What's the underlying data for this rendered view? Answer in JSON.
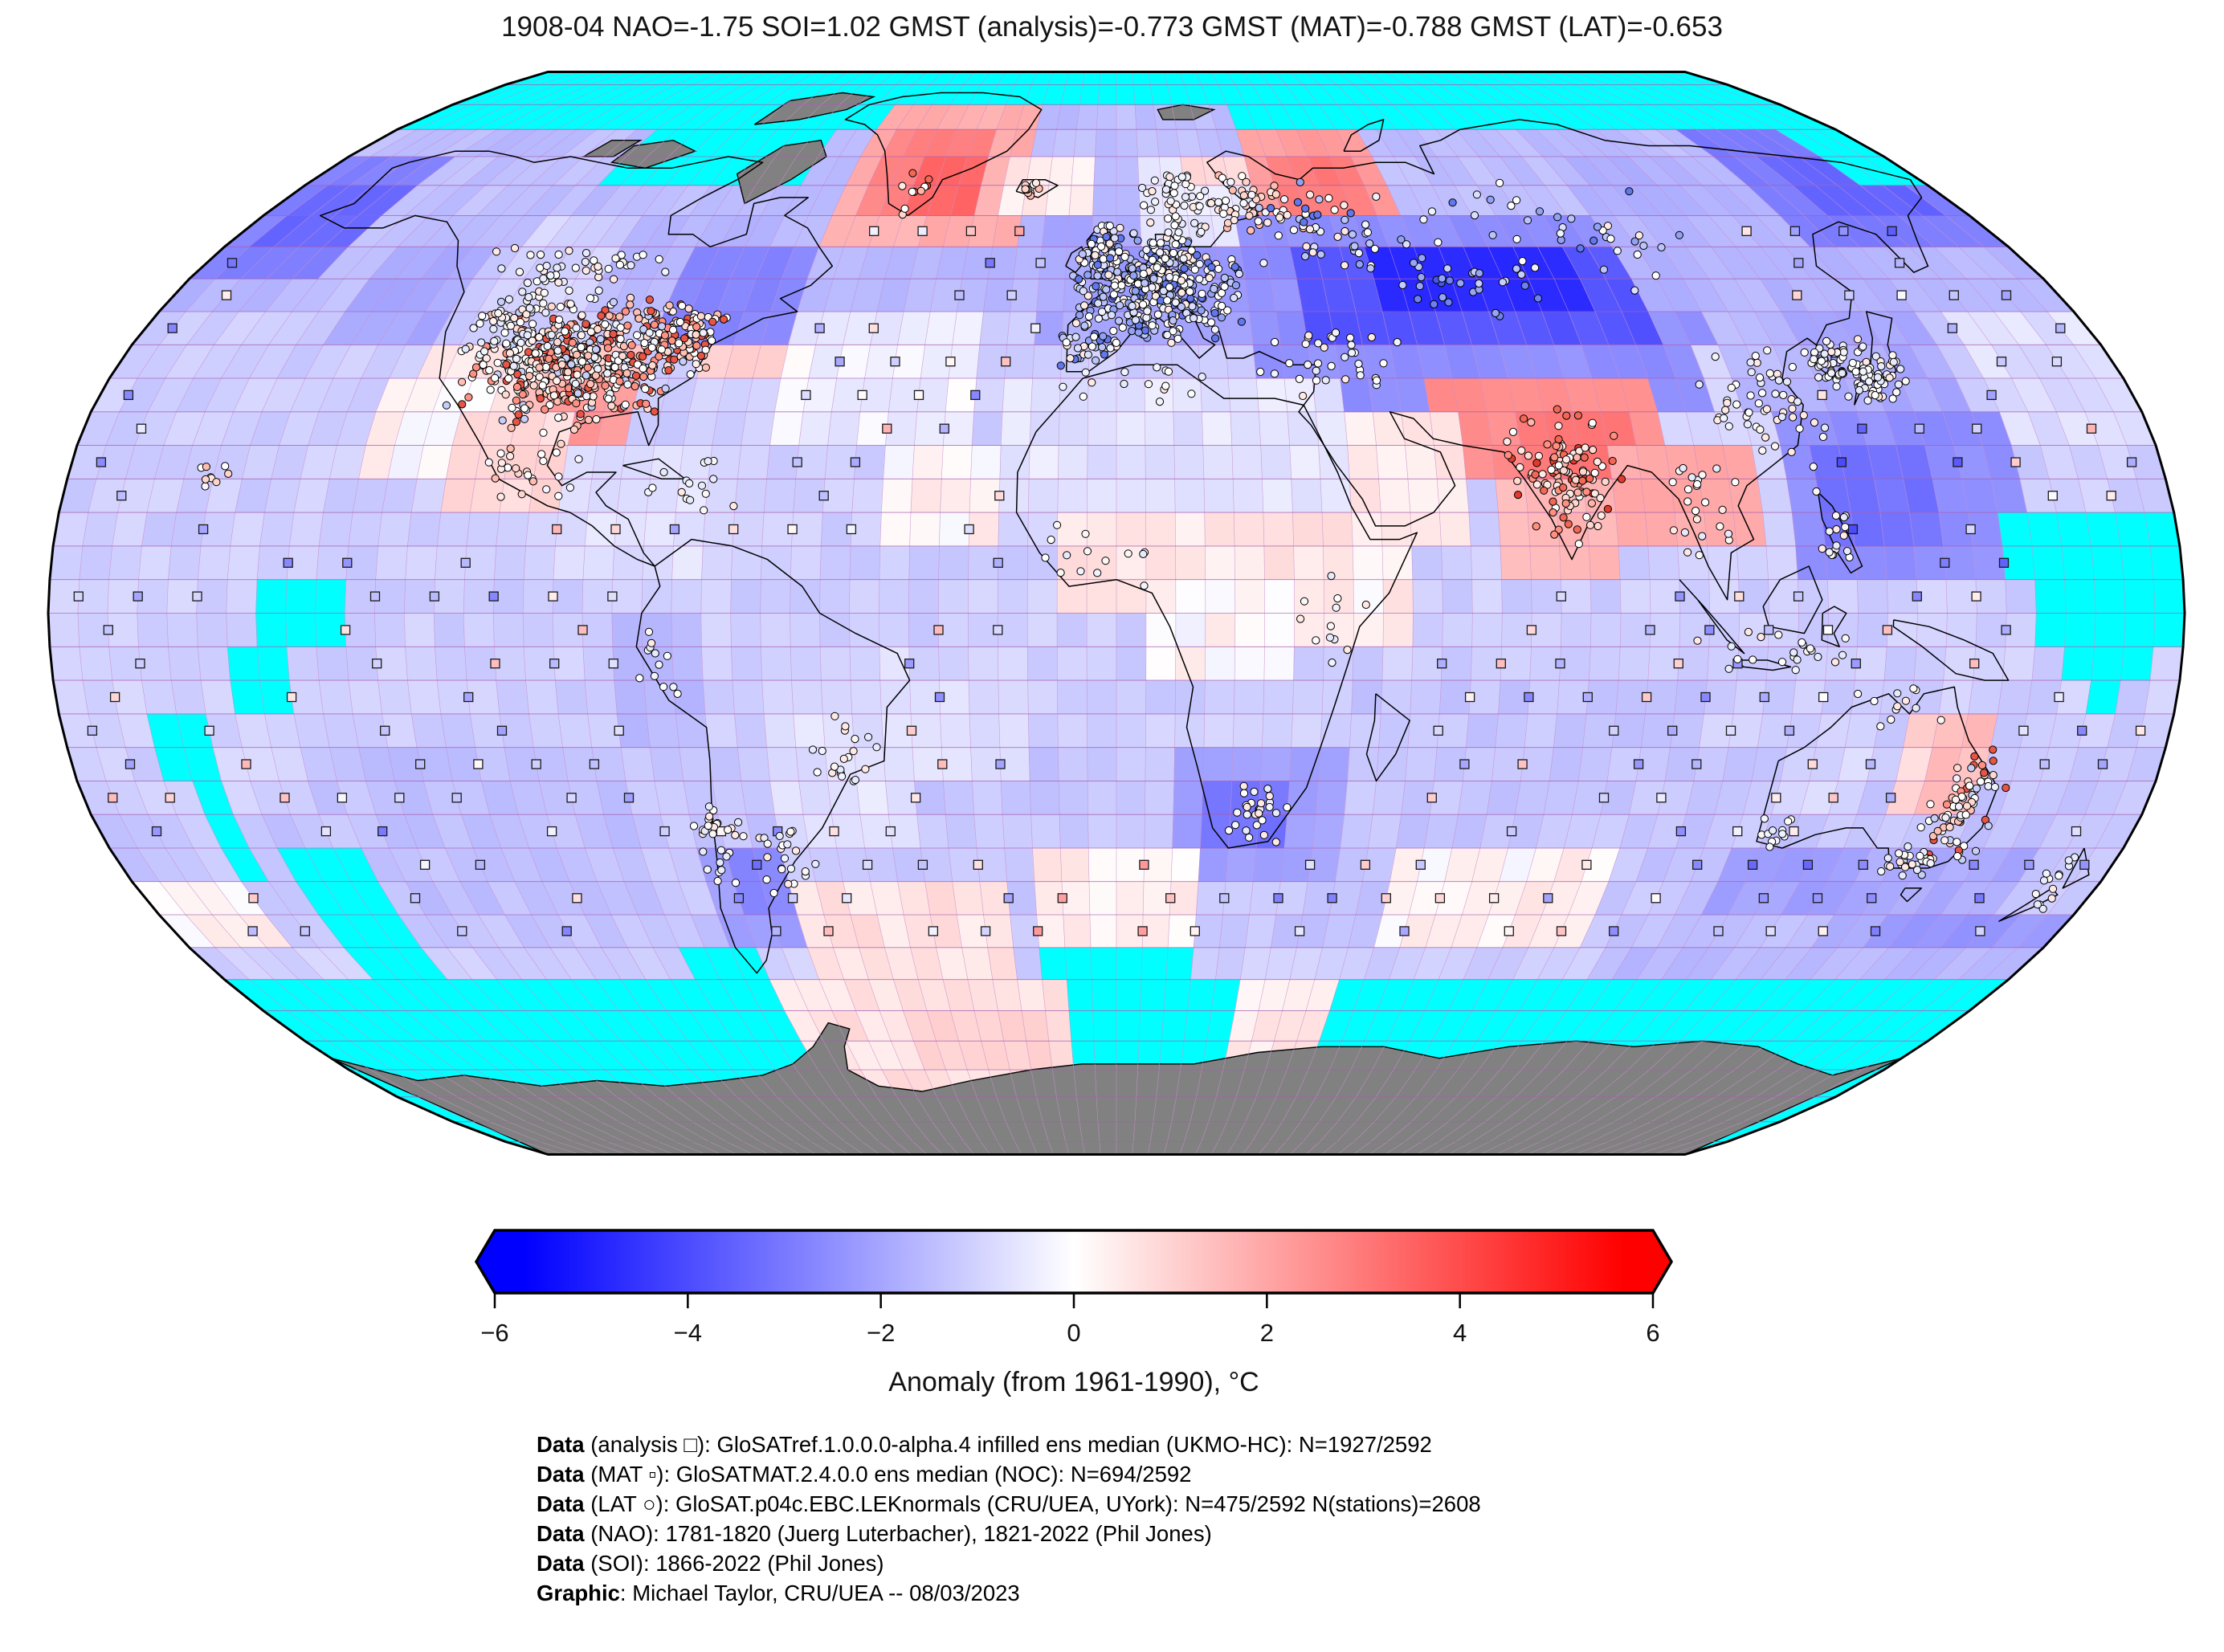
{
  "title": "1908-04 NAO=-1.75 SOI=1.02 GMST (analysis)=-0.773 GMST (MAT)=-0.788 GMST (LAT)=-0.653",
  "colorbar": {
    "label": "Anomaly (from 1961-1990), °C",
    "ticks": [
      -6,
      -4,
      -2,
      0,
      2,
      4,
      6
    ],
    "tick_labels": [
      "−6",
      "−4",
      "−2",
      "0",
      "2",
      "4",
      "6"
    ],
    "range": [
      -6,
      6
    ],
    "left_color": "#0000ff",
    "mid_color": "#ffffff",
    "right_color": "#ff0000"
  },
  "footer": {
    "lines": [
      {
        "bold": "Data",
        "rest": " (analysis □): GloSATref.1.0.0.0-alpha.4 infilled ens median (UKMO-HC): N=1927/2592"
      },
      {
        "bold": "Data",
        "rest": " (MAT ▫): GloSATMAT.2.4.0.0 ens median (NOC): N=694/2592"
      },
      {
        "bold": "Data",
        "rest": " (LAT ○): GloSAT.p04c.EBC.LEKnormals (CRU/UEA, UYork): N=475/2592 N(stations)=2608"
      },
      {
        "bold": "Data",
        "rest": " (NAO): 1781-1820 (Juerg Luterbacher), 1821-2022 (Phil Jones)"
      },
      {
        "bold": "Data",
        "rest": " (SOI): 1866-2022 (Phil Jones)"
      },
      {
        "bold": "Graphic",
        "rest": ": Michael Taylor, CRU/UEA -- 08/03/2023"
      }
    ]
  },
  "chart_data": {
    "type": "heatmap",
    "projection": "robinson",
    "title": "1908-04 NAO=-1.75 SOI=1.02 GMST (analysis)=-0.773 GMST (MAT)=-0.788 GMST (LAT)=-0.653",
    "period": "1908-04",
    "indices": {
      "NAO": -1.75,
      "SOI": 1.02,
      "GMST_analysis": -0.773,
      "GMST_MAT": -0.788,
      "GMST_LAT": -0.653
    },
    "grid": {
      "cell_deg": 5,
      "n_total": 2592,
      "n_analysis": 1927,
      "n_mat": 694,
      "n_lat": 475,
      "n_stations": 2608
    },
    "colorbar_label": "Anomaly (from 1961-1990), °C",
    "colors": {
      "missing": "#00ffff",
      "no_data_land": "#818181",
      "graticule_meridian": "#c891cc",
      "graticule_parallel": "#a75fae",
      "coast": "#000000",
      "outline": "#000000"
    },
    "anomaly_base": -0.6,
    "anomaly_patches": [
      [
        -180,
        180,
        60,
        80,
        -0.9
      ],
      [
        -180,
        180,
        45,
        60,
        -1.05
      ],
      [
        -180,
        180,
        -50,
        -20,
        -0.75
      ],
      [
        -180,
        -155,
        50,
        70,
        -2.2
      ],
      [
        -172.5,
        -150,
        55,
        67.5,
        -2.9
      ],
      [
        -155,
        -120,
        47.5,
        72.5,
        -0.85
      ],
      [
        -142.5,
        -122.5,
        40,
        55,
        -1.35
      ],
      [
        -120,
        -95,
        35,
        62.5,
        -0.55
      ],
      [
        -100,
        -80,
        45,
        60,
        -1.0
      ],
      [
        -85,
        -57.5,
        42.5,
        57.5,
        -2.1
      ],
      [
        -125,
        -105,
        30,
        42.5,
        0.15
      ],
      [
        -105,
        -82.5,
        30,
        42.5,
        0.85
      ],
      [
        -97.5,
        -82.5,
        27.5,
        37.5,
        1.7
      ],
      [
        -115,
        -95,
        17.5,
        30,
        0.45
      ],
      [
        -95,
        -62.5,
        7.5,
        25,
        -0.35
      ],
      [
        -72.5,
        -60,
        35,
        42.5,
        0.5
      ],
      [
        -60,
        -25,
        27.5,
        45,
        -0.15
      ],
      [
        -37.5,
        -17.5,
        10,
        27.5,
        0.1
      ],
      [
        -55,
        -30,
        45,
        60,
        -1.0
      ],
      [
        -60,
        -17.5,
        57.5,
        80,
        1.2
      ],
      [
        -52.5,
        -27.5,
        60,
        77.5,
        2.2
      ],
      [
        -45,
        -30,
        62.5,
        72.5,
        2.9
      ],
      [
        -25,
        -5,
        60,
        70,
        0.2
      ],
      [
        -15,
        32.5,
        42.5,
        62.5,
        -1.3
      ],
      [
        -5,
        25,
        45,
        57.5,
        -1.6
      ],
      [
        5,
        35,
        57.5,
        72.5,
        -0.2
      ],
      [
        15,
        32.5,
        65,
        72.5,
        0.5
      ],
      [
        30,
        62.5,
        55,
        75,
        1.6
      ],
      [
        35,
        57.5,
        60,
        70,
        2.4
      ],
      [
        45,
        80,
        52.5,
        62.5,
        0.6
      ],
      [
        25,
        115,
        30,
        62.5,
        -1.9
      ],
      [
        37.5,
        100,
        42.5,
        57.5,
        -3.4
      ],
      [
        50,
        92.5,
        45,
        55,
        -4.7
      ],
      [
        100,
        145,
        47.5,
        70,
        -1.1
      ],
      [
        140,
        180,
        57.5,
        75,
        -2.4
      ],
      [
        152.5,
        177.5,
        60,
        70,
        -3.0
      ],
      [
        105,
        122.5,
        22.5,
        42.5,
        -0.4
      ],
      [
        112.5,
        135,
        30,
        45,
        -1.0
      ],
      [
        117.5,
        155,
        7.5,
        32.5,
        -1.9
      ],
      [
        120,
        140,
        10,
        25,
        -2.6
      ],
      [
        125,
        152.5,
        32.5,
        45,
        -1.3
      ],
      [
        155,
        180,
        25,
        45,
        -0.35
      ],
      [
        57.5,
        95,
        22.5,
        35,
        1.9
      ],
      [
        70,
        92.5,
        22.5,
        32.5,
        2.5
      ],
      [
        87.5,
        110,
        12.5,
        27.5,
        1.3
      ],
      [
        67.5,
        85,
        5,
        22.5,
        1.0
      ],
      [
        35,
        60,
        12.5,
        32.5,
        0.25
      ],
      [
        -20,
        40,
        15,
        37.5,
        -0.3
      ],
      [
        -10,
        35,
        0,
        15,
        0.25
      ],
      [
        7.5,
        32.5,
        -10,
        7.5,
        0.05
      ],
      [
        32.5,
        52.5,
        -5,
        12.5,
        0.15
      ],
      [
        10,
        40,
        -37.5,
        -17.5,
        -1.5
      ],
      [
        15,
        30,
        -35,
        -25,
        -2.6
      ],
      [
        40,
        100,
        -45,
        -10,
        -0.75
      ],
      [
        50,
        90,
        -50,
        -32.5,
        0.1
      ],
      [
        115,
        132.5,
        -30,
        -17.5,
        -0.5
      ],
      [
        137.5,
        150,
        -30,
        -12.5,
        0.5
      ],
      [
        142.5,
        150,
        -27.5,
        -15,
        0.9
      ],
      [
        110,
        140,
        -45,
        -32.5,
        -1.5
      ],
      [
        135,
        165,
        -47.5,
        -35,
        -1.3
      ],
      [
        145,
        180,
        -55,
        -42.5,
        -1.7
      ],
      [
        -180,
        -140,
        -30,
        10,
        -0.55
      ],
      [
        -130,
        -85,
        -45,
        -20,
        -0.85
      ],
      [
        -85,
        -70,
        -17.5,
        0,
        -1.0
      ],
      [
        -75,
        -57.5,
        -50,
        -32.5,
        -1.5
      ],
      [
        -70,
        -60,
        -45,
        -35,
        -2.0
      ],
      [
        -57.5,
        -35,
        -35,
        -15,
        -0.3
      ],
      [
        -40,
        -15,
        -25,
        -5,
        -0.4
      ],
      [
        -60,
        -20,
        -57.5,
        -40,
        0.3
      ],
      [
        -15,
        15,
        -50,
        -32.5,
        0.15
      ],
      [
        -180,
        -160,
        -50,
        -40,
        0.1
      ],
      [
        95,
        180,
        -55,
        -47.5,
        -1.0
      ],
      [
        -67.5,
        -7.5,
        -75,
        -52.5,
        0.3
      ],
      [
        -45,
        -15,
        -70,
        -57.5,
        0.5
      ],
      [
        25,
        45,
        -70,
        -55,
        0.2
      ],
      [
        -130,
        -115,
        22.5,
        37.5,
        0.05
      ]
    ],
    "missing_rects": [
      [
        -180,
        180,
        82.5,
        90
      ],
      [
        -180,
        -57.5,
        77.5,
        82.5
      ],
      [
        30,
        180,
        77.5,
        82.5
      ],
      [
        -112.5,
        -70,
        67.5,
        77.5
      ],
      [
        165,
        180,
        67.5,
        77.5
      ],
      [
        152.5,
        180,
        5,
        17.5
      ],
      [
        157.5,
        180,
        -2.5,
        5
      ],
      [
        162.5,
        177.5,
        -7.5,
        -2.5
      ],
      [
        167.5,
        172.5,
        -12.5,
        -7.5
      ],
      [
        -145,
        -130,
        -5,
        7.5
      ],
      [
        -150,
        -140,
        -12.5,
        -2.5
      ],
      [
        -162.5,
        -155,
        -22.5,
        -12.5
      ],
      [
        -160,
        -152.5,
        -37.5,
        -22.5
      ],
      [
        -150,
        -135,
        -52.5,
        -35
      ],
      [
        -85,
        -70,
        -55,
        -50
      ],
      [
        -180,
        180,
        -90,
        -55
      ],
      [
        -12.5,
        17.5,
        -55,
        -50
      ]
    ],
    "missing_holes": [
      [
        -67.5,
        -7.5,
        -75,
        -52.5
      ],
      [
        25,
        45,
        -70,
        -55
      ]
    ],
    "stations": {
      "square_markers": {
        "lat_min": -47.5,
        "lat_max": 57.5,
        "lat_step": 5,
        "lon_step": 10,
        "keep": 0.62,
        "size": 11
      },
      "no_square_zones": [
        [
          -168,
          -55,
          17.5,
          72
        ],
        [
          -82,
          -35,
          -30,
          12
        ],
        [
          -18,
          52,
          -35,
          36
        ],
        [
          -11,
          130,
          37.5,
          77.5
        ],
        [
          50,
          125,
          5,
          37.5
        ],
        [
          140,
          155,
          -40,
          -12
        ],
        [
          -55,
          -20,
          59,
          83
        ]
      ],
      "circle_clusters": [
        [
          -98,
          38,
          13,
          6,
          520,
          "uspink"
        ],
        [
          -80,
          41,
          5,
          3.5,
          110,
          "uspink"
        ],
        [
          -112,
          44,
          6,
          5,
          60,
          "whites"
        ],
        [
          -105,
          52,
          14,
          3,
          40,
          "whites"
        ],
        [
          -100,
          22,
          6,
          4,
          30,
          "pinksoft"
        ],
        [
          -72,
          19,
          8,
          3,
          16,
          "whites"
        ],
        [
          -71,
          -33,
          2.5,
          6,
          26,
          "whites"
        ],
        [
          -61,
          -36,
          5,
          4,
          26,
          "whites"
        ],
        [
          -45,
          -21,
          6,
          4,
          20,
          "whites"
        ],
        [
          -78,
          -6,
          3,
          5,
          12,
          "whites"
        ],
        [
          8,
          49,
          11,
          6,
          420,
          "whiteblue"
        ],
        [
          -5,
          40,
          4,
          3,
          40,
          "whiteblue"
        ],
        [
          -3,
          54,
          3,
          3.5,
          45,
          "whiteblue"
        ],
        [
          13,
          62,
          5,
          4,
          50,
          "whites"
        ],
        [
          28,
          62,
          7,
          4,
          50,
          "pinksoft"
        ],
        [
          45,
          58,
          12,
          5,
          55,
          "whiteblue"
        ],
        [
          68,
          49,
          9,
          3.5,
          28,
          "blues"
        ],
        [
          90,
          57,
          20,
          6,
          40,
          "whiteblue"
        ],
        [
          38,
          38,
          9,
          4,
          36,
          "whites"
        ],
        [
          77,
          21,
          7,
          7,
          120,
          "redspink"
        ],
        [
          101,
          15,
          5,
          6,
          24,
          "whites"
        ],
        [
          114,
          31,
          7,
          6,
          55,
          "whites"
        ],
        [
          134,
          36,
          5,
          3.5,
          95,
          "whites"
        ],
        [
          127,
          38,
          2,
          2,
          18,
          "whites"
        ],
        [
          122,
          12,
          2.5,
          4,
          16,
          "whites"
        ],
        [
          112,
          -6,
          10,
          2.5,
          22,
          "whites"
        ],
        [
          148,
          -30,
          4.5,
          7,
          75,
          "uspink"
        ],
        [
          143,
          -37,
          3,
          1.5,
          25,
          "whites"
        ],
        [
          117,
          -33,
          2.5,
          2,
          12,
          "whites"
        ],
        [
          134,
          -14,
          7,
          2.5,
          12,
          "whites"
        ],
        [
          172,
          -40,
          2.5,
          3.5,
          14,
          "whites"
        ],
        [
          25,
          -29,
          4.5,
          3.5,
          28,
          "whites"
        ],
        [
          -5,
          9,
          8,
          4,
          14,
          "whites"
        ],
        [
          36,
          -2,
          4,
          6,
          12,
          "whites"
        ],
        [
          6,
          34,
          10,
          2,
          14,
          "whites"
        ],
        [
          -156,
          20.5,
          2.5,
          1.5,
          9,
          "pinksoft"
        ],
        [
          -19,
          64.5,
          2.5,
          1.2,
          12,
          "pinksoft"
        ],
        [
          -45,
          64,
          3,
          4,
          10,
          "redspink"
        ]
      ],
      "palettes": {
        "uspink": [
          "#ffffff",
          "#ffffff",
          "#fff1ed",
          "#ffd9d0",
          "#ffbfb2",
          "#ff9183",
          "#e85545",
          "#eef1fc",
          "#c6cff7"
        ],
        "whiteblue": [
          "#ffffff",
          "#ffffff",
          "#f0f2fe",
          "#dadffc",
          "#bac4f8",
          "#91a2f2",
          "#6277e9",
          "#ffe9e4"
        ],
        "redspink": [
          "#ffd8d0",
          "#ffb5a8",
          "#ff8f7e",
          "#f36854",
          "#e13c2a",
          "#ffffff",
          "#ffe9e4"
        ],
        "blues": [
          "#96a5f4",
          "#6e82ee",
          "#4458e6",
          "#c6cff7"
        ],
        "whites": [
          "#ffffff",
          "#fbf7f5",
          "#f1f3fd",
          "#e7eafb",
          "#ffe9e4"
        ],
        "pinksoft": [
          "#ffffff",
          "#ffe9e4",
          "#ffd4cb",
          "#ffbdb0",
          "#f7f5ff"
        ]
      }
    }
  }
}
